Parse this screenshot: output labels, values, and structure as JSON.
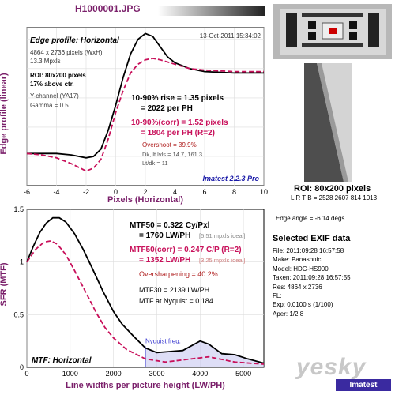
{
  "file_title": "H1000001.JPG",
  "edge_chart": {
    "title": "Edge profile: Horizontal",
    "date": "13-Oct-2011 15:34:02",
    "info": [
      "4864 x 2736 pixels (WxH)",
      "13.3 Mpxls"
    ],
    "roi": [
      "ROI: 80x200 pixels",
      "17% above ctr."
    ],
    "channel": [
      "Y-channel (YA17)",
      "Gamma = 0.5"
    ],
    "rise": [
      "10-90% rise = 1.35 pixels",
      "= 2022 per PH"
    ],
    "rise_corr": [
      "10-90%(corr) = 1.52 pixels",
      "= 1804 per PH (R=2)"
    ],
    "overshoot": "Overshoot = 39.9%",
    "levels": [
      "Dk, lt lvls = 14.7, 161.3",
      "Lt/dk = 11"
    ],
    "software": "Imatest 2.2.3 Pro",
    "xlabel": "Pixels (Horizontal)",
    "ylabel": "Edge profile (linear)",
    "xticks": [
      "-6",
      "-4",
      "-2",
      "0",
      "2",
      "4",
      "6",
      "8",
      "10"
    ]
  },
  "mtf_chart": {
    "title": "MTF: Horizontal",
    "mtf50": [
      "MTF50 = 0.322 Cy/Pxl",
      "= 1760 LW/PH"
    ],
    "mtf50_ideal": "[5.51 mpxls ideal]",
    "mtf50_corr": [
      "MTF50(corr) = 0.247 C/P (R=2)",
      "= 1352 LW/PH"
    ],
    "mtf50_corr_ideal": "[3.25 mpxls ideal]",
    "oversharpening": "Oversharpening = 40.2%",
    "mtf30": "MTF30 = 2139 LW/PH",
    "nyquist_value": "MTF at Nyquist = 0.184",
    "nyquist_label": "Nyquist freq.",
    "xlabel": "Line widths per picture height (LW/PH)",
    "ylabel": "SFR (MTF)",
    "xticks": [
      "0",
      "1000",
      "2000",
      "3000",
      "4000",
      "5000"
    ],
    "yticks": [
      "0",
      "0.5",
      "1",
      "1.5"
    ]
  },
  "roi_panel": {
    "title": "ROI: 80x200 pixels",
    "coords": "L R T B = 2528 2607 814 1013",
    "edge_angle": "Edge angle = -6.14 degs"
  },
  "exif": {
    "title": "Selected EXIF data",
    "rows": [
      "File: 2011:09:28 16:57:58",
      "Make: Panasonic",
      "Model: HDC-HS900",
      "Taken: 2011:09:28 16:57:55",
      "Res: 4864 x 2736",
      "FL:",
      "Exp: 0.0100 s (1/100)",
      "Aper: 1/2.8"
    ]
  },
  "brand": "Imatest",
  "watermark": "yesky",
  "chart_data": [
    {
      "type": "line",
      "title": "Edge profile: Horizontal",
      "xlabel": "Pixels (Horizontal)",
      "ylabel": "Edge profile (linear)",
      "xlim": [
        -6,
        10
      ],
      "ylim": [
        0,
        1.08
      ],
      "series": [
        {
          "values": [
            [
              -6,
              0.22
            ],
            [
              -5,
              0.22
            ],
            [
              -4,
              0.22
            ],
            [
              -3,
              0.21
            ],
            [
              -2,
              0.19
            ],
            [
              -1.5,
              0.2
            ],
            [
              -1,
              0.25
            ],
            [
              -0.5,
              0.38
            ],
            [
              0,
              0.55
            ],
            [
              0.5,
              0.74
            ],
            [
              1,
              0.9
            ],
            [
              1.5,
              1.0
            ],
            [
              2,
              1.04
            ],
            [
              2.5,
              1.02
            ],
            [
              3,
              0.95
            ],
            [
              3.5,
              0.88
            ],
            [
              4,
              0.84
            ],
            [
              5,
              0.8
            ],
            [
              6,
              0.78
            ],
            [
              8,
              0.77
            ],
            [
              10,
              0.77
            ]
          ],
          "color": "#000000"
        },
        {
          "values": [
            [
              -6,
              0.22
            ],
            [
              -5,
              0.21
            ],
            [
              -4,
              0.19
            ],
            [
              -3,
              0.15
            ],
            [
              -2,
              0.1
            ],
            [
              -1.5,
              0.12
            ],
            [
              -1,
              0.18
            ],
            [
              -0.5,
              0.32
            ],
            [
              0,
              0.5
            ],
            [
              0.5,
              0.65
            ],
            [
              1,
              0.77
            ],
            [
              1.5,
              0.83
            ],
            [
              2,
              0.86
            ],
            [
              2.5,
              0.87
            ],
            [
              3,
              0.86
            ],
            [
              4,
              0.83
            ],
            [
              5,
              0.8
            ],
            [
              6,
              0.79
            ],
            [
              8,
              0.78
            ],
            [
              10,
              0.78
            ]
          ],
          "color": "#c8105a"
        }
      ]
    },
    {
      "type": "line",
      "title": "MTF: Horizontal",
      "xlabel": "Line widths per picture height (LW/PH)",
      "ylabel": "SFR (MTF)",
      "xlim": [
        0,
        5472
      ],
      "ylim": [
        0,
        1.5
      ],
      "nyquist_x": 2736,
      "series": [
        {
          "values": [
            [
              0,
              1.0
            ],
            [
              150,
              1.15
            ],
            [
              300,
              1.28
            ],
            [
              450,
              1.37
            ],
            [
              600,
              1.42
            ],
            [
              750,
              1.42
            ],
            [
              900,
              1.38
            ],
            [
              1100,
              1.27
            ],
            [
              1300,
              1.12
            ],
            [
              1500,
              0.95
            ],
            [
              1760,
              0.72
            ],
            [
              2000,
              0.53
            ],
            [
              2200,
              0.41
            ],
            [
              2500,
              0.28
            ],
            [
              2736,
              0.184
            ],
            [
              3000,
              0.14
            ],
            [
              3300,
              0.15
            ],
            [
              3600,
              0.16
            ],
            [
              4000,
              0.25
            ],
            [
              4200,
              0.22
            ],
            [
              4500,
              0.13
            ],
            [
              4800,
              0.12
            ],
            [
              5100,
              0.08
            ],
            [
              5472,
              0.04
            ]
          ],
          "color": "#000000"
        },
        {
          "values": [
            [
              0,
              1.0
            ],
            [
              200,
              1.12
            ],
            [
              400,
              1.19
            ],
            [
              550,
              1.2
            ],
            [
              700,
              1.17
            ],
            [
              900,
              1.07
            ],
            [
              1100,
              0.92
            ],
            [
              1352,
              0.72
            ],
            [
              1600,
              0.52
            ],
            [
              1800,
              0.38
            ],
            [
              2000,
              0.28
            ],
            [
              2300,
              0.17
            ],
            [
              2736,
              0.08
            ],
            [
              3200,
              0.05
            ],
            [
              3800,
              0.08
            ],
            [
              4200,
              0.1
            ],
            [
              4800,
              0.05
            ],
            [
              5472,
              0.03
            ]
          ],
          "color": "#c8105a"
        }
      ]
    }
  ]
}
